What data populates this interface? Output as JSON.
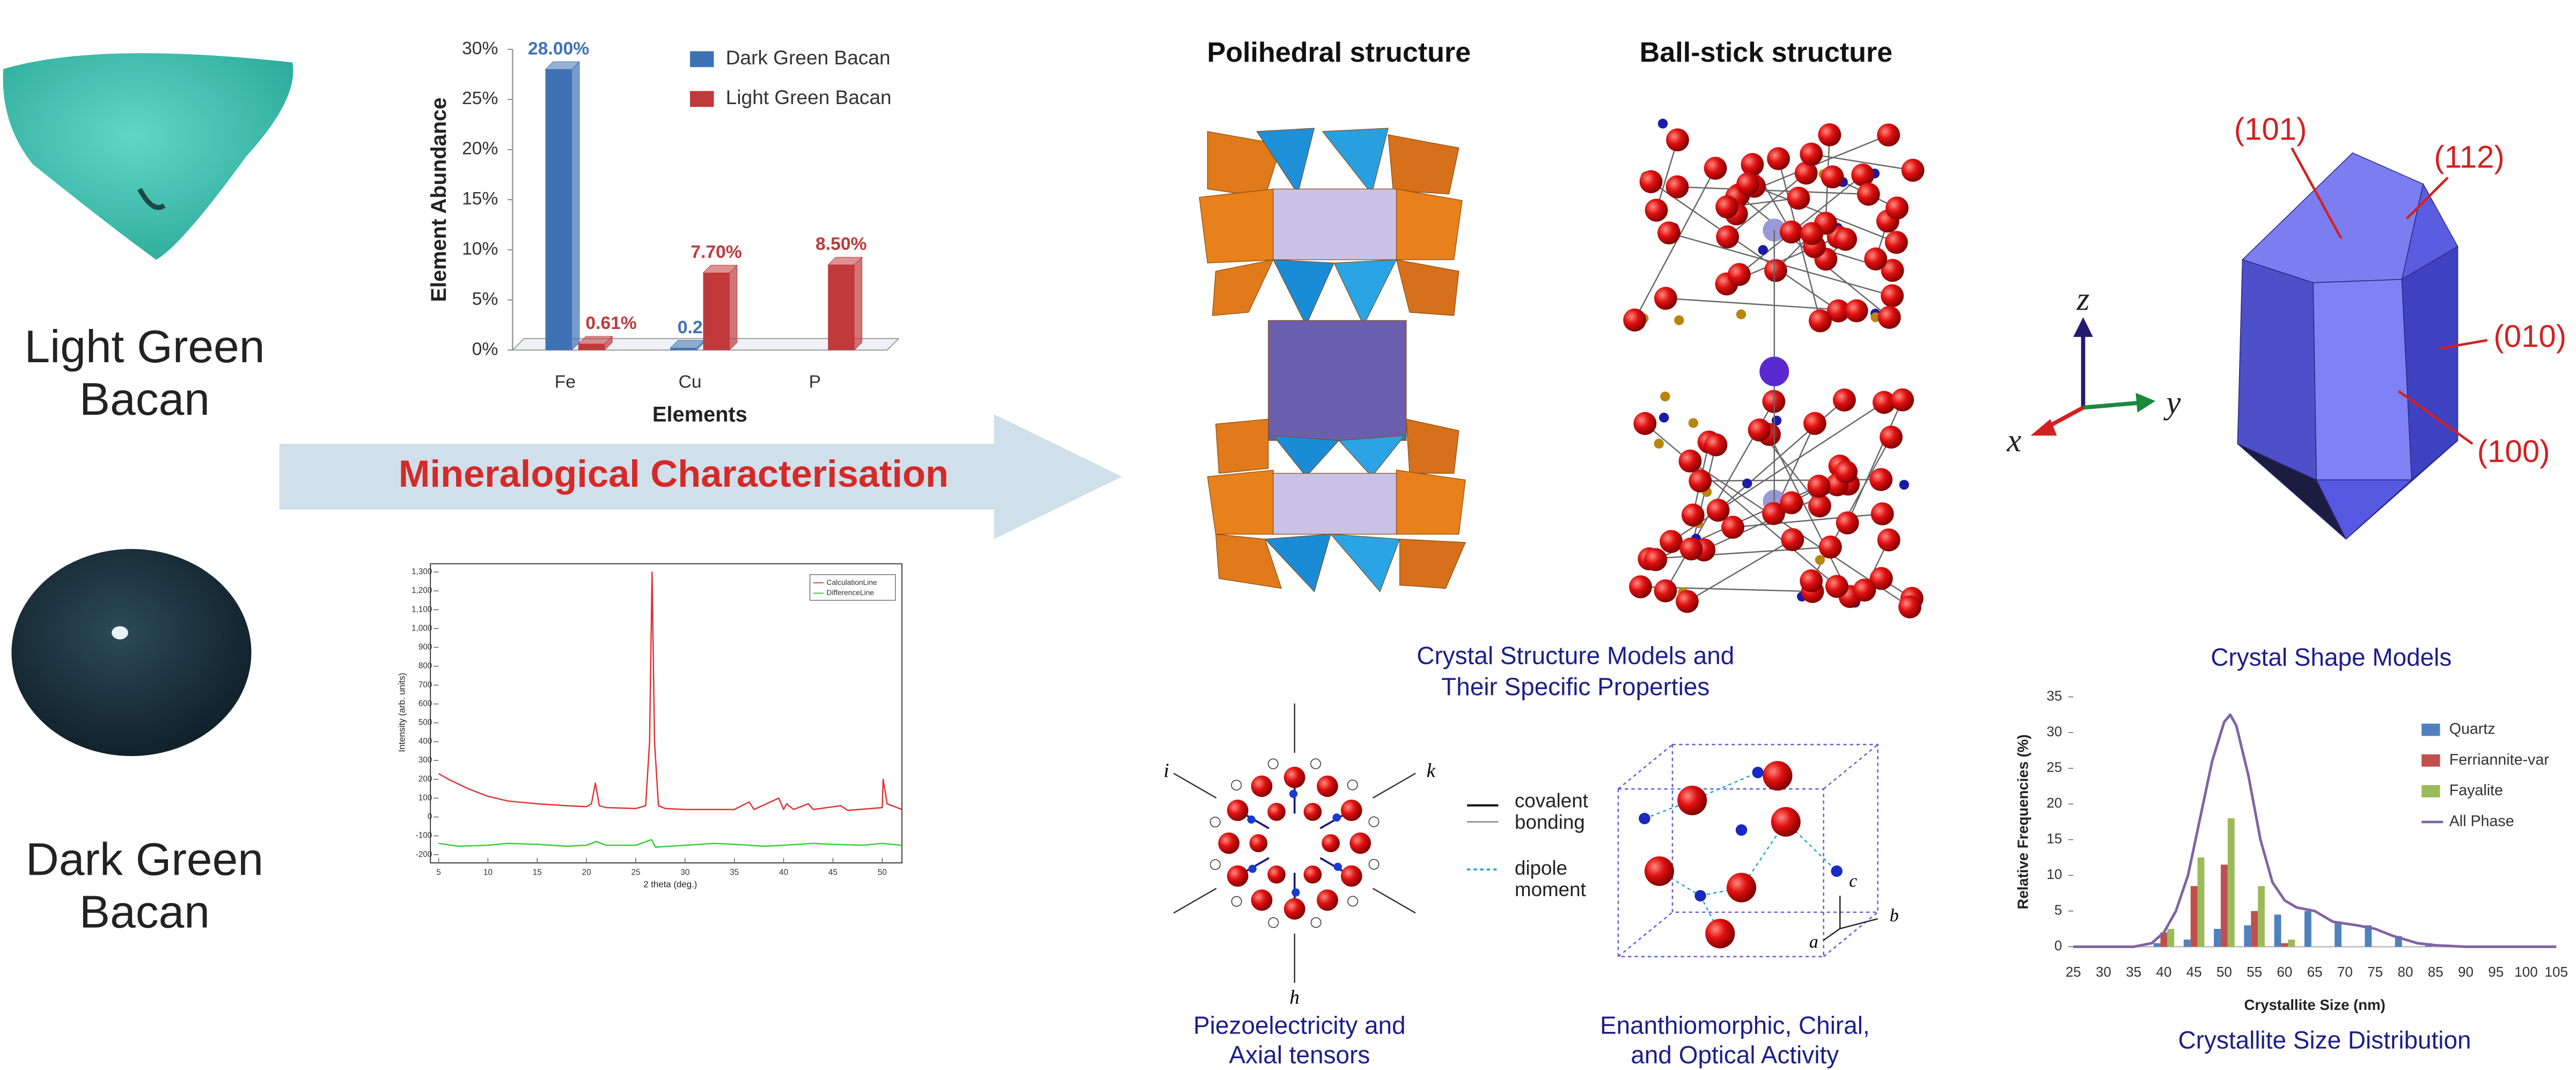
{
  "samples": [
    {
      "label": [
        "Light Green",
        "Bacan"
      ]
    },
    {
      "label": [
        "Dark Green",
        "Bacan"
      ]
    }
  ],
  "arrow_label": "Mineralogical Characterisation",
  "structures": {
    "polyhedral_title": "Polihedral structure",
    "ball_stick_title": "Ball-stick structure",
    "caption": [
      "Crystal Structure Models and",
      "Their Specific Properties"
    ]
  },
  "shape": {
    "caption": "Crystal Shape Models",
    "axes": [
      "z",
      "y",
      "x"
    ],
    "faces": [
      "(101)",
      "(112)",
      "(010)",
      "(100)"
    ]
  },
  "properties": {
    "piezo": {
      "caption": [
        "Piezoelectricity and",
        "Axial tensors"
      ],
      "axes": [
        "i",
        "k",
        "h"
      ]
    },
    "legend": {
      "covalent": [
        "covalent",
        "bonding"
      ],
      "dipole": [
        "dipole",
        "moment"
      ]
    },
    "chiral": {
      "caption": [
        "Enanthiomorphic, Chiral,",
        "and Optical Activity"
      ],
      "axes": [
        "c",
        "b",
        "a"
      ]
    }
  },
  "distribution_caption": "Crystallite Size Distribution",
  "chart_data": [
    {
      "type": "bar",
      "style": "3d",
      "xlabel": "Elements",
      "ylabel": "Element Abundance",
      "categories": [
        "Fe",
        "Cu",
        "P"
      ],
      "series": [
        {
          "name": "Dark Green Bacan",
          "color": "#3f72b5",
          "values": [
            28.0,
            0.2,
            null
          ],
          "value_labels": [
            "28.00%",
            "0.20%",
            null
          ]
        },
        {
          "name": "Light Green Bacan",
          "color": "#c0393b",
          "values": [
            0.61,
            7.7,
            8.5
          ],
          "value_labels": [
            "0.61%",
            "7.70%",
            "8.50%"
          ]
        }
      ],
      "ylim": [
        0,
        30
      ],
      "yticks": [
        {
          "value": 0,
          "label": "0%"
        },
        {
          "value": 5,
          "label": "5%"
        },
        {
          "value": 10,
          "label": "10%"
        },
        {
          "value": 15,
          "label": "15%"
        },
        {
          "value": 20,
          "label": "20%"
        },
        {
          "value": 25,
          "label": "25%"
        },
        {
          "value": 30,
          "label": "30%"
        }
      ],
      "legend": "top-right"
    },
    {
      "type": "line",
      "xlabel": "2 theta (deg.)",
      "ylabel": "Intensity (arb. units)",
      "series": [
        {
          "name": "CalculationLine",
          "color": "#e03030",
          "x": [
            5,
            6,
            8,
            10,
            12,
            15,
            18,
            20,
            20.5,
            20.9,
            21.3,
            22,
            25,
            26,
            26.4,
            26.65,
            26.9,
            27.3,
            28,
            30,
            35,
            36.5,
            37,
            39.5,
            40,
            40.3,
            41,
            42.5,
            43,
            45.8,
            46.5,
            50,
            50.1,
            50.5,
            52
          ],
          "values": [
            230,
            200,
            150,
            110,
            85,
            70,
            60,
            55,
            70,
            180,
            60,
            50,
            45,
            60,
            400,
            1300,
            400,
            60,
            45,
            40,
            40,
            80,
            40,
            100,
            40,
            70,
            40,
            70,
            40,
            60,
            35,
            50,
            200,
            70,
            40
          ]
        },
        {
          "name": "DifferenceLine",
          "color": "#33cc33",
          "x": [
            5,
            7,
            10,
            12,
            15,
            18,
            20,
            21,
            22,
            25,
            26.6,
            27,
            30,
            33,
            35,
            38,
            40,
            43,
            45,
            48,
            50,
            52
          ],
          "values": [
            -140,
            -155,
            -150,
            -140,
            -145,
            -155,
            -150,
            -130,
            -150,
            -150,
            -120,
            -160,
            -150,
            -140,
            -145,
            -155,
            -150,
            -140,
            -145,
            -150,
            -140,
            -150
          ]
        }
      ],
      "xlim": [
        5,
        52
      ],
      "xticks": [
        5,
        10,
        15,
        20,
        25,
        30,
        35,
        40,
        45,
        50
      ],
      "ylim": [
        -220,
        1330
      ],
      "yticks": [
        -200,
        -100,
        0,
        100,
        200,
        300,
        400,
        500,
        600,
        700,
        800,
        900,
        {
          "value": 1000,
          "label": "1,000"
        },
        {
          "value": 1100,
          "label": "1,100"
        },
        {
          "value": 1200,
          "label": "1,200"
        },
        {
          "value": 1300,
          "label": "1,300"
        }
      ],
      "legend": "top-right"
    },
    {
      "type": "bar",
      "xlabel": "Crystallite Size (nm)",
      "ylabel": "Relative Frequencies (%)",
      "series": [
        {
          "name": "Quartz",
          "color": "#4f81bd",
          "x": [
            40,
            45,
            50,
            55,
            60,
            65,
            70,
            75,
            80,
            85
          ],
          "values": [
            0.5,
            1,
            2.5,
            3,
            4.5,
            5,
            3.5,
            3,
            1.5,
            0.5
          ]
        },
        {
          "name": "Ferriannite-var",
          "color": "#c0504d",
          "x": [
            40,
            45,
            50,
            55,
            60
          ],
          "values": [
            2,
            8.5,
            11.5,
            5,
            0.5
          ]
        },
        {
          "name": "Fayalite",
          "color": "#9bbb59",
          "x": [
            40,
            45,
            50,
            55,
            60
          ],
          "values": [
            2.5,
            12.5,
            18,
            8.5,
            1
          ]
        },
        {
          "name": "All Phase",
          "color": "#8064a2",
          "style": "line",
          "x": [
            25,
            35,
            38,
            40,
            42,
            44,
            46,
            48,
            50,
            51,
            52,
            54,
            56,
            58,
            60,
            62,
            65,
            68,
            72,
            75,
            78,
            82,
            85,
            90,
            105
          ],
          "values": [
            0,
            0,
            0.5,
            2,
            5,
            10,
            18,
            26,
            31.5,
            32.5,
            31,
            24,
            15,
            9,
            6.5,
            5.5,
            5,
            3.5,
            3,
            2.5,
            1.5,
            0.5,
            0.2,
            0,
            0
          ]
        }
      ],
      "xlim": [
        25,
        105
      ],
      "xticks": [
        25,
        30,
        35,
        40,
        45,
        50,
        55,
        60,
        65,
        70,
        75,
        80,
        85,
        90,
        95,
        100,
        105
      ],
      "ylim": [
        0,
        35
      ],
      "yticks": [
        0,
        5,
        10,
        15,
        20,
        25,
        30,
        35
      ],
      "legend": "right"
    }
  ]
}
